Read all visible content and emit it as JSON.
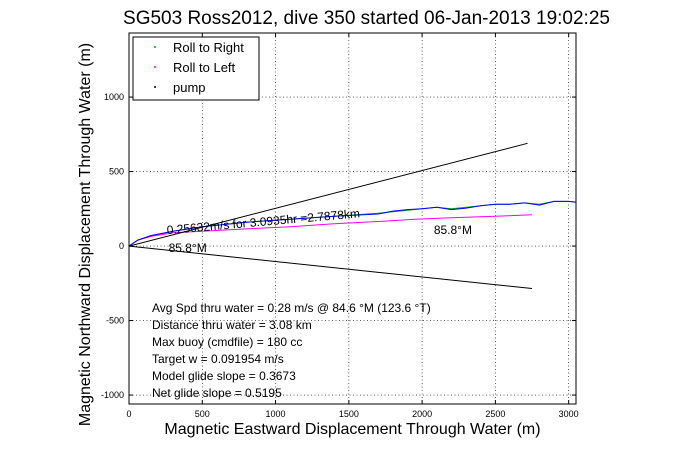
{
  "chart_data": {
    "type": "line",
    "title": "SG503 Ross2012, dive 350 started 06-Jan-2013 19:02:25",
    "xlabel": "Magnetic Eastward Displacement Through Water (m)",
    "ylabel": "Magnetic Northward Displacement Through Water (m)",
    "xlim": [
      0,
      3050
    ],
    "ylim": [
      -1060,
      1430
    ],
    "xticks": [
      0,
      500,
      1000,
      1500,
      2000,
      2500,
      3000
    ],
    "yticks": [
      -1000,
      -500,
      0,
      500,
      1000
    ],
    "grid": true,
    "legend_position": "top-left",
    "legend": [
      {
        "label": "Roll to Right",
        "color": "#00aa00"
      },
      {
        "label": "Roll to Left",
        "color": "#ff00ff"
      },
      {
        "label": "pump",
        "color": "#000000"
      }
    ],
    "series": [
      {
        "name": "Roll to Right",
        "color": "#00aa00",
        "x": [
          0,
          60,
          150,
          300,
          500,
          800,
          1100,
          1400,
          1700,
          1900,
          2000,
          2100,
          2200,
          2300,
          2400,
          2500,
          2600,
          2700,
          2800,
          2900,
          3000,
          3050
        ],
        "y": [
          0,
          40,
          70,
          100,
          130,
          160,
          180,
          200,
          220,
          240,
          250,
          260,
          250,
          260,
          270,
          280,
          280,
          290,
          280,
          300,
          300,
          295
        ]
      },
      {
        "name": "Roll to Left",
        "color": "#ff00ff",
        "x": [
          0,
          60,
          150,
          300,
          500,
          800,
          1100,
          1400,
          1700,
          1950,
          2200,
          2500,
          2750
        ],
        "y": [
          0,
          40,
          65,
          90,
          100,
          115,
          130,
          150,
          165,
          180,
          190,
          200,
          210
        ]
      },
      {
        "name": "",
        "color": "#0000ff",
        "x": [
          0,
          60,
          150,
          300,
          500,
          800,
          1100,
          1400,
          1700,
          1800,
          1900,
          2000,
          2100,
          2200,
          2300,
          2400,
          2500,
          2600,
          2700,
          2800,
          2900,
          3000,
          3050
        ],
        "y": [
          0,
          40,
          70,
          100,
          130,
          160,
          180,
          200,
          215,
          235,
          245,
          250,
          260,
          245,
          255,
          270,
          280,
          280,
          290,
          275,
          300,
          300,
          295
        ]
      },
      {
        "name": "",
        "color": "#000000",
        "x": [
          0,
          2720
        ],
        "y": [
          0,
          690
        ]
      },
      {
        "name": "",
        "color": "#000000",
        "x": [
          0,
          2750
        ],
        "y": [
          0,
          -285
        ]
      }
    ],
    "annotations": [
      {
        "text": "0.25632m/s for 3.0935hr =2.7878km",
        "x": 260,
        "y": 80,
        "rotation": -5
      },
      {
        "text": "85.8°M",
        "x": 2080,
        "y": 80,
        "rotation": 0
      },
      {
        "text": "85.8°M",
        "x": 270,
        "y": -40,
        "rotation": 0
      }
    ],
    "stats": [
      "Avg Spd thru water =  0.28 m/s @  84.6   °M (123.6 °T)",
      "Distance thru water =  3.08 km",
      "Max buoy (cmdfile) = 180 cc",
      "Target w = 0.091954 m/s",
      "Model glide slope = 0.3673",
      "Net glide slope = 0.5195"
    ]
  }
}
